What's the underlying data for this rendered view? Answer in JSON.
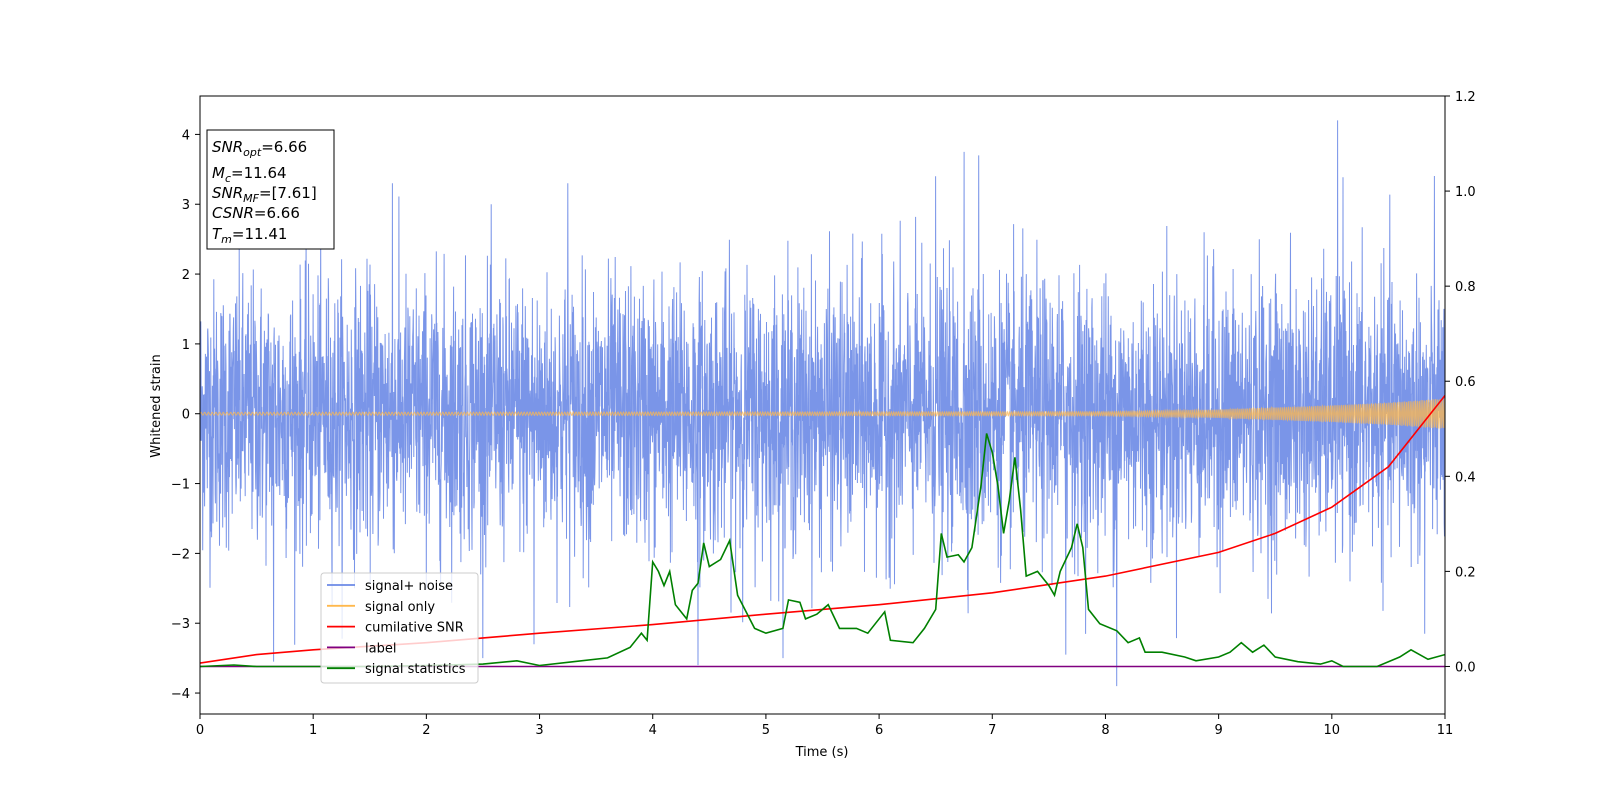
{
  "chart_data": {
    "type": "line",
    "xlabel": "Time (s)",
    "ylabel": "Whitened strain",
    "xlim": [
      0,
      11
    ],
    "ylim": [
      -4.3,
      4.55
    ],
    "y2lim": [
      -0.1,
      1.2
    ],
    "xticks": [
      "0",
      "1",
      "2",
      "3",
      "4",
      "5",
      "6",
      "7",
      "8",
      "9",
      "10",
      "11"
    ],
    "yticks": [
      "4",
      "3",
      "2",
      "1",
      "0",
      "−1",
      "−2",
      "−3",
      "−4"
    ],
    "y2ticks": [
      "1.2",
      "1.0",
      "0.8",
      "0.6",
      "0.4",
      "0.2",
      "0.0"
    ],
    "grid": false,
    "legend_position": "lower-left",
    "legend": [
      {
        "label": "signal+ noise",
        "color": "#6b8ae6"
      },
      {
        "label": "signal only",
        "color": "#ffb84d"
      },
      {
        "label": "cumilative SNR",
        "color": "#ff0000"
      },
      {
        "label": "label",
        "color": "#800080"
      },
      {
        "label": "signal statistics",
        "color": "#008000"
      }
    ],
    "annotation": {
      "snr_opt": {
        "sym": "SNR",
        "sub": "opt",
        "val": "=6.66"
      },
      "mc": {
        "sym": "M",
        "sub": "c",
        "val": "=11.64"
      },
      "snr_mf": {
        "sym": "SNR",
        "sub": "MF",
        "val": "=[7.61]"
      },
      "csnr": {
        "sym": "CSNR",
        "val": "=6.66"
      },
      "tm": {
        "sym": "T",
        "sub": "m",
        "val": "=11.41"
      }
    },
    "series": [
      {
        "name": "signal+ noise",
        "axis": "left",
        "color": "#6b8ae6",
        "description_values": {
          "std": 0.95,
          "min": -3.9,
          "max": 4.2
        },
        "peaks": [
          {
            "x": 0.65,
            "y": -3.55
          },
          {
            "x": 1.7,
            "y": 3.3
          },
          {
            "x": 2.95,
            "y": -3.3
          },
          {
            "x": 3.25,
            "y": 3.3
          },
          {
            "x": 4.4,
            "y": -3.6
          },
          {
            "x": 6.5,
            "y": 3.4
          },
          {
            "x": 6.75,
            "y": 3.75
          },
          {
            "x": 6.88,
            "y": 3.7
          },
          {
            "x": 7.65,
            "y": -3.45
          },
          {
            "x": 8.1,
            "y": -3.9
          },
          {
            "x": 10.05,
            "y": 4.2
          },
          {
            "x": 10.82,
            "y": -3.15
          }
        ]
      },
      {
        "name": "signal only",
        "axis": "left",
        "color": "#ffb84d",
        "envelope": [
          [
            0,
            0.02
          ],
          [
            8,
            0.03
          ],
          [
            9,
            0.06
          ],
          [
            10,
            0.12
          ],
          [
            10.5,
            0.16
          ],
          [
            11,
            0.22
          ]
        ]
      },
      {
        "name": "cumilative SNR",
        "axis": "right",
        "color": "#ff0000",
        "points": [
          [
            0,
            0.007
          ],
          [
            0.5,
            0.025
          ],
          [
            1,
            0.035
          ],
          [
            2,
            0.05
          ],
          [
            3,
            0.07
          ],
          [
            4,
            0.088
          ],
          [
            5,
            0.11
          ],
          [
            6,
            0.13
          ],
          [
            7,
            0.155
          ],
          [
            8,
            0.19
          ],
          [
            9,
            0.24
          ],
          [
            9.5,
            0.28
          ],
          [
            10,
            0.335
          ],
          [
            10.5,
            0.42
          ],
          [
            11,
            0.57
          ]
        ]
      },
      {
        "name": "label",
        "axis": "right",
        "color": "#800080",
        "points": [
          [
            0,
            0.0
          ],
          [
            11,
            0.0
          ]
        ]
      },
      {
        "name": "signal statistics",
        "axis": "right",
        "color": "#008000",
        "points": [
          [
            0,
            0.0
          ],
          [
            0.3,
            0.003
          ],
          [
            0.5,
            0.0
          ],
          [
            1,
            0.0
          ],
          [
            1.5,
            0.0
          ],
          [
            2,
            0.002
          ],
          [
            2.5,
            0.005
          ],
          [
            2.8,
            0.012
          ],
          [
            3.0,
            0.002
          ],
          [
            3.3,
            0.01
          ],
          [
            3.6,
            0.018
          ],
          [
            3.8,
            0.04
          ],
          [
            3.9,
            0.07
          ],
          [
            3.95,
            0.055
          ],
          [
            4.0,
            0.22
          ],
          [
            4.05,
            0.2
          ],
          [
            4.1,
            0.17
          ],
          [
            4.15,
            0.2
          ],
          [
            4.2,
            0.13
          ],
          [
            4.3,
            0.1
          ],
          [
            4.35,
            0.16
          ],
          [
            4.4,
            0.175
          ],
          [
            4.45,
            0.26
          ],
          [
            4.5,
            0.21
          ],
          [
            4.6,
            0.225
          ],
          [
            4.68,
            0.265
          ],
          [
            4.75,
            0.15
          ],
          [
            4.9,
            0.08
          ],
          [
            5.0,
            0.07
          ],
          [
            5.15,
            0.08
          ],
          [
            5.2,
            0.14
          ],
          [
            5.3,
            0.135
          ],
          [
            5.35,
            0.1
          ],
          [
            5.45,
            0.11
          ],
          [
            5.55,
            0.13
          ],
          [
            5.65,
            0.08
          ],
          [
            5.8,
            0.08
          ],
          [
            5.9,
            0.07
          ],
          [
            6.05,
            0.115
          ],
          [
            6.1,
            0.055
          ],
          [
            6.3,
            0.05
          ],
          [
            6.4,
            0.08
          ],
          [
            6.5,
            0.12
          ],
          [
            6.55,
            0.28
          ],
          [
            6.6,
            0.23
          ],
          [
            6.7,
            0.235
          ],
          [
            6.75,
            0.22
          ],
          [
            6.82,
            0.25
          ],
          [
            6.9,
            0.38
          ],
          [
            6.95,
            0.49
          ],
          [
            7.0,
            0.45
          ],
          [
            7.05,
            0.38
          ],
          [
            7.1,
            0.28
          ],
          [
            7.15,
            0.35
          ],
          [
            7.2,
            0.44
          ],
          [
            7.25,
            0.33
          ],
          [
            7.3,
            0.19
          ],
          [
            7.4,
            0.2
          ],
          [
            7.5,
            0.17
          ],
          [
            7.55,
            0.15
          ],
          [
            7.6,
            0.2
          ],
          [
            7.7,
            0.25
          ],
          [
            7.75,
            0.3
          ],
          [
            7.8,
            0.25
          ],
          [
            7.85,
            0.12
          ],
          [
            7.95,
            0.09
          ],
          [
            8.1,
            0.075
          ],
          [
            8.2,
            0.05
          ],
          [
            8.3,
            0.06
          ],
          [
            8.35,
            0.03
          ],
          [
            8.5,
            0.03
          ],
          [
            8.7,
            0.02
          ],
          [
            8.8,
            0.012
          ],
          [
            9.0,
            0.02
          ],
          [
            9.1,
            0.03
          ],
          [
            9.2,
            0.05
          ],
          [
            9.3,
            0.03
          ],
          [
            9.4,
            0.045
          ],
          [
            9.5,
            0.02
          ],
          [
            9.7,
            0.01
          ],
          [
            9.9,
            0.005
          ],
          [
            10.0,
            0.012
          ],
          [
            10.1,
            0.0
          ],
          [
            10.4,
            0.0
          ],
          [
            10.6,
            0.02
          ],
          [
            10.7,
            0.035
          ],
          [
            10.85,
            0.015
          ],
          [
            11.0,
            0.025
          ]
        ]
      }
    ]
  }
}
